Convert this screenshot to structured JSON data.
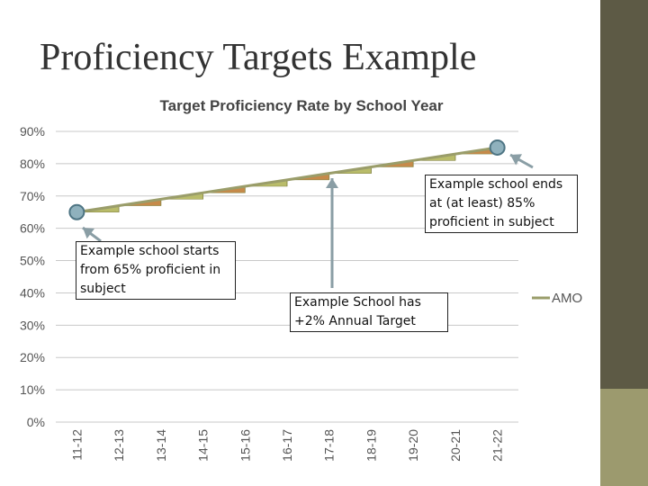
{
  "slide": {
    "title": "Proficiency Targets Example"
  },
  "callouts": {
    "start": "Example school starts from 65% proficient in subject",
    "annual": "Example School has +2% Annual Target",
    "end": "Example school ends at (at least) 85% proficient in subject"
  },
  "colors": {
    "amo_line": "#9a9d6a",
    "step_fill_a": "#b9bc6a",
    "step_fill_b": "#c68a4a",
    "marker_fill": "#8fb1bd",
    "marker_stroke": "#4d7483",
    "arrow": "#8a9ea5",
    "sidebar": "#5d5a45",
    "sidebar_accent": "#9c9a6e"
  },
  "chart_data": {
    "type": "line",
    "title": "Target Proficiency Rate by School Year",
    "xlabel": "",
    "ylabel": "",
    "categories": [
      "11-12",
      "12-13",
      "13-14",
      "14-15",
      "15-16",
      "16-17",
      "17-18",
      "18-19",
      "19-20",
      "20-21",
      "21-22"
    ],
    "series": [
      {
        "name": "AMO",
        "values": [
          0.65,
          0.67,
          0.69,
          0.71,
          0.73,
          0.75,
          0.77,
          0.79,
          0.81,
          0.83,
          0.85
        ]
      }
    ],
    "yticks": [
      "0%",
      "10%",
      "20%",
      "30%",
      "40%",
      "50%",
      "60%",
      "70%",
      "80%",
      "90%"
    ],
    "ylim": [
      0,
      0.9
    ],
    "grid": true,
    "legend": "right"
  }
}
